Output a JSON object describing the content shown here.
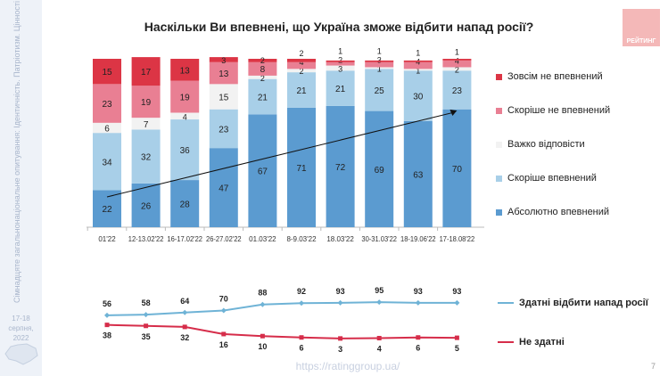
{
  "title": "Наскільки Ви впевнені, що Україна зможе відбити напад росії?",
  "logo": "РЕЙТИНГ",
  "sidebar": {
    "text": "Сімнадцяте загальнонаціональне опитування: Ідентичність. Патріотизм. Цінності (група РЕЙТИНГ)",
    "date": "17-18 серпня, 2022"
  },
  "footer": "https://ratinggroup.ua/",
  "page_number": "7",
  "chart_data": [
    {
      "type": "bar",
      "stacked": true,
      "categories": [
        "01'22",
        "12-13.02'22",
        "16-17.02'22",
        "26-27.02'22",
        "01.03'22",
        "8-9.03'22",
        "18.03'22",
        "30-31.03'22",
        "18-19.06'22",
        "17-18.08'22"
      ],
      "series": [
        {
          "name": "Абсолютно впевнений",
          "color": "#5b9bd0",
          "values": [
            22,
            26,
            28,
            47,
            67,
            71,
            72,
            69,
            63,
            70
          ]
        },
        {
          "name": "Скоріше впевнений",
          "color": "#a8cfe8",
          "values": [
            34,
            32,
            36,
            23,
            21,
            21,
            21,
            25,
            30,
            23
          ]
        },
        {
          "name": "Важко відповісти",
          "color": "#f2f2f2",
          "values": [
            6,
            7,
            4,
            15,
            2,
            2,
            3,
            1,
            1,
            2
          ]
        },
        {
          "name": "Скоріше не впевнений",
          "color": "#e97f93",
          "values": [
            23,
            19,
            19,
            13,
            8,
            4,
            2,
            3,
            4,
            4
          ]
        },
        {
          "name": "Зовсім не впевнений",
          "color": "#dc3545",
          "values": [
            15,
            17,
            13,
            3,
            2,
            2,
            1,
            1,
            1,
            1
          ]
        }
      ],
      "legend": "right",
      "trend_arrow": true
    },
    {
      "type": "line",
      "categories": [
        "01'22",
        "12-13.02'22",
        "16-17.02'22",
        "26-27.02'22",
        "01.03'22",
        "8-9.03'22",
        "18.03'22",
        "30-31.03'22",
        "18-19.06'22",
        "17-18.08'22"
      ],
      "series": [
        {
          "name": "Здатні відбити напад росії",
          "color": "#6fb3d6",
          "values": [
            56,
            58,
            64,
            70,
            88,
            92,
            93,
            95,
            93,
            93
          ]
        },
        {
          "name": "Не здатні",
          "color": "#d62d4a",
          "values": [
            38,
            35,
            32,
            16,
            10,
            6,
            3,
            4,
            6,
            5
          ]
        }
      ],
      "legend": "right"
    }
  ]
}
